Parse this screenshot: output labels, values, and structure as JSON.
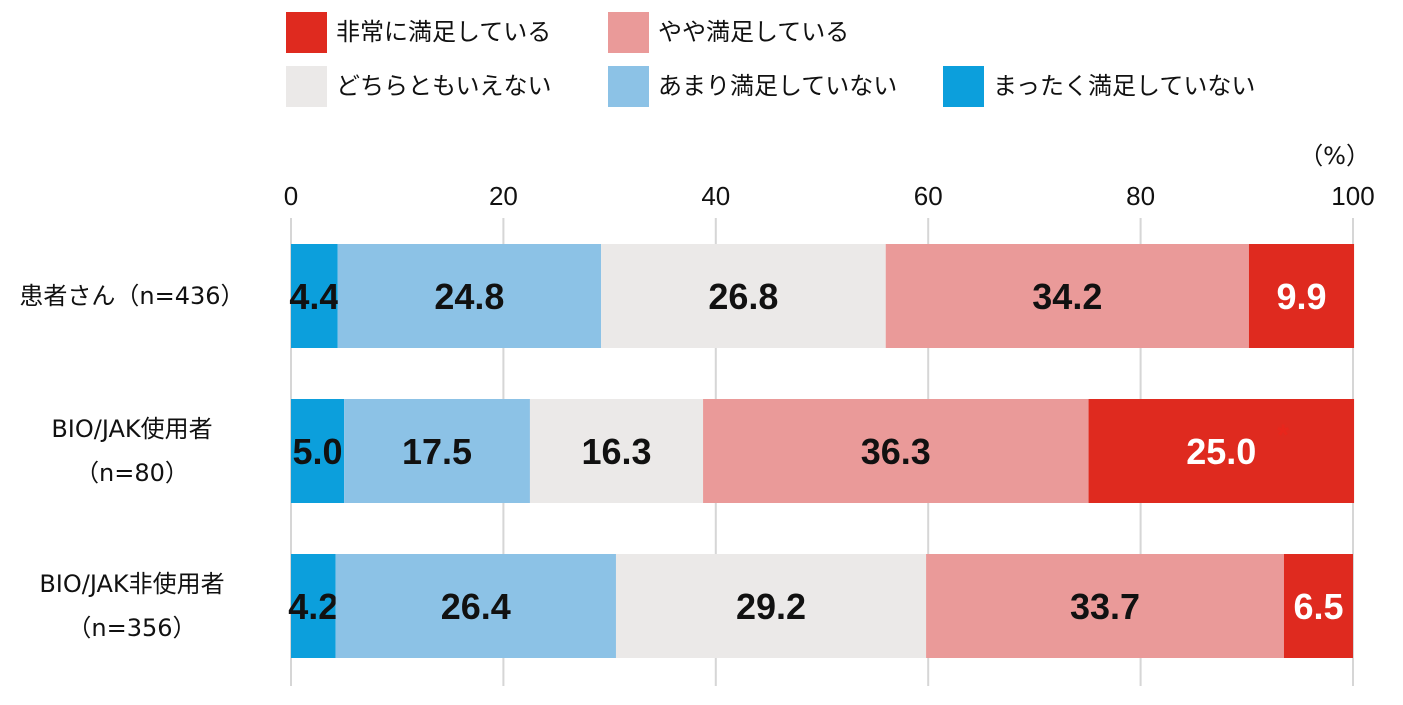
{
  "chart_data": {
    "type": "bar",
    "orientation": "horizontal",
    "stacked": true,
    "unit": "（%）",
    "xlim": [
      0,
      100
    ],
    "x_ticks": [
      "0",
      "20",
      "40",
      "60",
      "80",
      "100"
    ],
    "grid": "vertical",
    "legend_placement": "top",
    "categories": [
      [
        "患者さん（n=436）"
      ],
      [
        "BIO/JAK使用者",
        "（n=80）"
      ],
      [
        "BIO/JAK非使用者",
        "（n=356）"
      ]
    ],
    "series": [
      {
        "name": "まったく満足していない",
        "color": "#0c9fdc",
        "label_color": "#111111",
        "values": [
          4.4,
          5.0,
          4.2
        ]
      },
      {
        "name": "あまり満足していない",
        "color": "#8cc2e6",
        "label_color": "#111111",
        "values": [
          24.8,
          17.5,
          26.4
        ]
      },
      {
        "name": "どちらともいえない",
        "color": "#ebe9e8",
        "label_color": "#111111",
        "values": [
          26.8,
          16.3,
          29.2
        ]
      },
      {
        "name": "やや満足している",
        "color": "#ea9a99",
        "label_color": "#111111",
        "values": [
          34.2,
          36.3,
          33.7
        ]
      },
      {
        "name": "非常に満足している",
        "color": "#df2a1f",
        "label_color": "#ffffff",
        "values": [
          9.9,
          25.0,
          6.5
        ]
      }
    ],
    "legend_order": [
      "非常に満足している",
      "やや満足している",
      "どちらともいえない",
      "あまり満足していない",
      "まったく満足していない"
    ],
    "annotation": {
      "text": "*",
      "series": "非常に満足している",
      "category_index": 1,
      "color": "#e8261c"
    }
  }
}
